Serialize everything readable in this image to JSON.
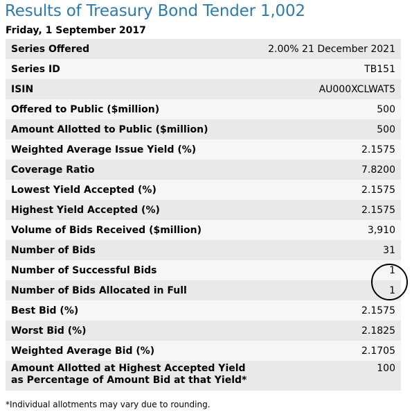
{
  "title": "Results of Treasury Bond Tender 1,002",
  "date": "Friday, 1 September 2017",
  "rows": [
    {
      "label": "Series Offered",
      "value": "2.00% 21 December 2021"
    },
    {
      "label": "Series ID",
      "value": "TB151"
    },
    {
      "label": "ISIN",
      "value": "AU000XCLWAT5"
    },
    {
      "label": "Offered to Public ($million)",
      "value": "500"
    },
    {
      "label": "Amount Allotted to Public ($million)",
      "value": "500"
    },
    {
      "label": "Weighted Average Issue Yield (%)",
      "value": "2.1575"
    },
    {
      "label": "Coverage Ratio",
      "value": "7.8200"
    },
    {
      "label": "Lowest Yield Accepted (%)",
      "value": "2.1575"
    },
    {
      "label": "Highest Yield Accepted (%)",
      "value": "2.1575"
    },
    {
      "label": "Volume of Bids Received ($million)",
      "value": "3,910"
    },
    {
      "label": "Number of Bids",
      "value": "31"
    },
    {
      "label": "Number of Successful Bids",
      "value": "1"
    },
    {
      "label": "Number of Bids Allocated in Full",
      "value": "1"
    },
    {
      "label": "Best Bid (%)",
      "value": "2.1575"
    },
    {
      "label": "Worst Bid (%)",
      "value": "2.1825"
    },
    {
      "label": "Weighted Average Bid (%)",
      "value": "2.1705"
    },
    {
      "label": "Amount Allotted at Highest Accepted Yield as Percentage of Amount Bid at that Yield*",
      "value": "100"
    }
  ],
  "footnote": "*Individual allotments may vary due to rounding."
}
